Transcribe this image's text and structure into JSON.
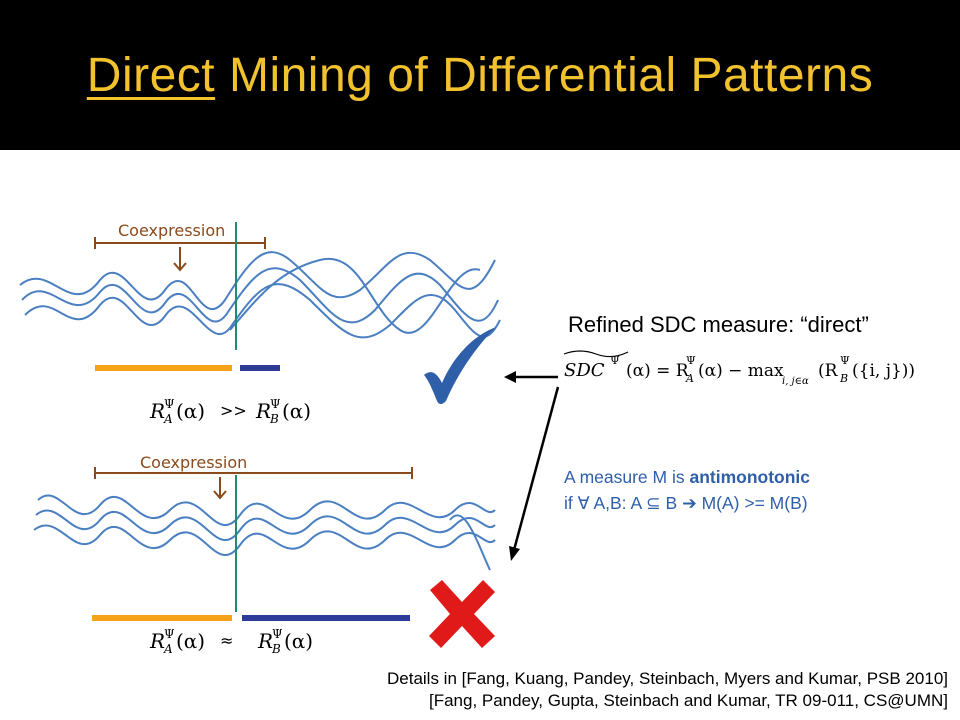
{
  "title": {
    "underlined": "Direct",
    "rest": " Mining of Differential Patterns"
  },
  "top_panel": {
    "label": "Coexpression",
    "relation": ">>"
  },
  "bottom_panel": {
    "label": "Coexpression",
    "relation": "≈"
  },
  "refined_text": "Refined SDC measure: “direct”",
  "formula": {
    "lhs": "SDC",
    "sup": "Ψ",
    "arg": "(α) = R",
    "rest": "(α) − max",
    "sub2": "i, j∈α",
    "tail": "(R",
    "tail2": "({i, j}))"
  },
  "antimonotonic": {
    "line1_prefix": "A measure M is ",
    "line1_bold": "antimonotonic",
    "line2": "if ∀ A,B: A ⊆ B ➔ M(A) >= M(B)"
  },
  "details": {
    "line1": "Details in [Fang, Kuang, Pandey, Steinbach, Myers and Kumar, PSB 2010]",
    "line2": "[Fang, Pandey, Gupta, Steinbach and Kumar, TR 09-011, CS@UMN]"
  },
  "colors": {
    "title": "#f2c12e",
    "wave": "#4a7fc1",
    "orange_bar": "#f5a21b",
    "blue_bar": "#2e3b99",
    "check": "#2e5fa8",
    "cross": "#e01919",
    "bracket": "#8a4a1c",
    "green_line": "#1e8c6e"
  }
}
